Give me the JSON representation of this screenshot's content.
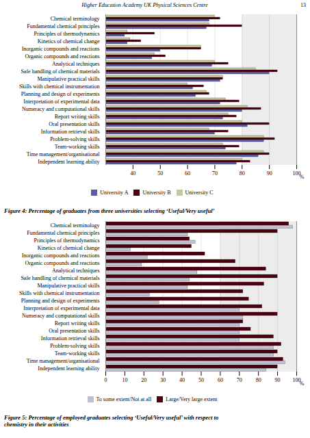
{
  "chart_data": [
    {
      "type": "bar",
      "orientation": "horizontal",
      "title": "Figure 4: Percentage of graduates from three universities selecting ‘Useful/Very useful’",
      "annotations": [
        "Higher Education Academy UK Physical Sciences Centre",
        "13"
      ],
      "xlabel": "%",
      "categories": [
        "Chemical terminology",
        "Fundamental chemical principles",
        "Principles of thermodynamics",
        "Kinetics of chemical change",
        "Inorganic compounds and reactions",
        "Organic compounds and reactions",
        "Analytical techniques",
        "Safe handling of chemical materials",
        "Manipulative practical skills",
        "Skills with chemical instrumentation",
        "Planning and design of experiments",
        "Interpretation of experimental data",
        "Numeracy and computational skills",
        "Report writing skills",
        "Oral presentation skills",
        "Information retrieval skills",
        "Problem-solving skills",
        "Team-working skills",
        "Time management/organisational",
        "Independent learning ability"
      ],
      "series": [
        {
          "name": "University A",
          "color": "#5B5EA6",
          "values": [
            68,
            67,
            37,
            38,
            50,
            47,
            69,
            90,
            72,
            62,
            63,
            72,
            80,
            73,
            82,
            70,
            88,
            74,
            86,
            78
          ]
        },
        {
          "name": "University B",
          "color": "#4B0010",
          "values": [
            72,
            80,
            48,
            43,
            65,
            52,
            75,
            93,
            73,
            66,
            68,
            79,
            87,
            78,
            90,
            75,
            92,
            79,
            90,
            83
          ]
        },
        {
          "name": "University C",
          "color": "#C8C8A0",
          "values": [
            70,
            68,
            38,
            39,
            65,
            48,
            70,
            85,
            73,
            60,
            67,
            74,
            82,
            75,
            80,
            68,
            88,
            73,
            88,
            80
          ]
        }
      ],
      "xlim": [
        30,
        100
      ],
      "xticks": [
        40,
        50,
        60,
        70,
        80,
        90,
        100
      ],
      "grid": true,
      "legend": "bottom",
      "shaded_range": [
        80,
        100
      ]
    },
    {
      "type": "bar",
      "orientation": "horizontal",
      "title": "Figure 5: Percentage of employed graduates selecting ‘Useful/Very useful’ with respect to\nchemistry in their activities",
      "xlabel": "%",
      "categories": [
        "Chemical terminology",
        "Fundamental chemical principles",
        "Principles of thermodynamics",
        "Kinetics of chemical change",
        "Inorganic compounds and reactions",
        "Organic compounds and reactions",
        "Analytical techniques",
        "Safe handling of chemical materials",
        "Manipulative practical skills",
        "Skills with chemical instrumentation",
        "Planning and design of experiments",
        "Interpretation of experimental data",
        "Numeracy and computational skills",
        "Report writing skills",
        "Oral presentation skills",
        "Information retrieval skills",
        "Problem-solving skills",
        "Team-working skills",
        "Time management/organisational",
        "Independent learning ability"
      ],
      "series": [
        {
          "name": "To some extent/Not at all",
          "color": "#C0C0D0",
          "values": [
            98,
            43,
            47,
            13,
            22,
            19,
            48,
            44,
            43,
            23,
            28,
            70,
            72,
            70,
            70,
            70,
            88,
            88,
            94,
            84
          ]
        },
        {
          "name": "Large/Very large extent",
          "color": "#4B0010",
          "values": [
            96,
            90,
            44,
            45,
            52,
            68,
            84,
            90,
            83,
            72,
            75,
            82,
            90,
            72,
            76,
            88,
            92,
            90,
            93,
            90
          ]
        }
      ],
      "xlim": [
        0,
        100
      ],
      "xticks": [
        0,
        10,
        20,
        30,
        40,
        50,
        60,
        70,
        80,
        90,
        100
      ],
      "grid": true,
      "legend": "bottom",
      "shaded_range": [
        60,
        100
      ]
    }
  ]
}
